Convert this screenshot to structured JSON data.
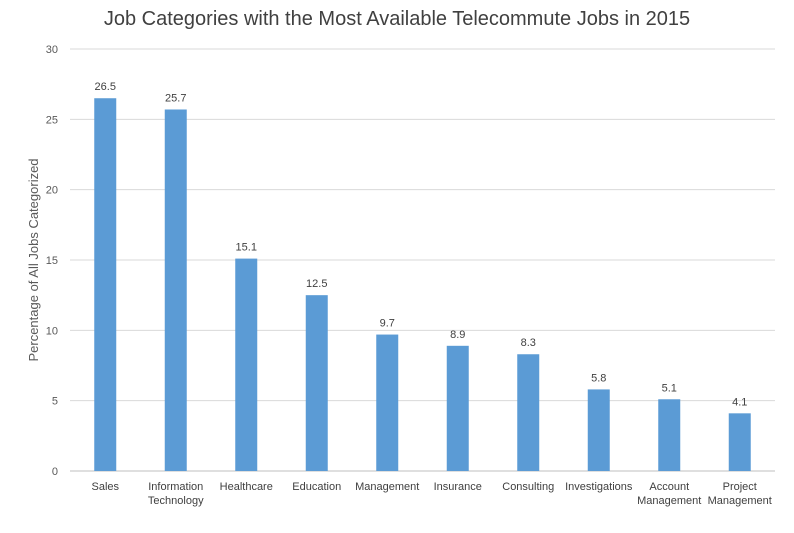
{
  "chart_data": {
    "type": "bar",
    "title": "Job Categories with the Most Available Telecommute Jobs in 2015",
    "xlabel": "",
    "ylabel": "Percentage of All Jobs Categorized",
    "ylim": [
      0,
      30
    ],
    "yticks": [
      0,
      5,
      10,
      15,
      20,
      25,
      30
    ],
    "grid": true,
    "legend": "none",
    "bar_color": "#5B9BD5",
    "categories": [
      [
        "Sales"
      ],
      [
        "Information",
        "Technology"
      ],
      [
        "Healthcare"
      ],
      [
        "Education"
      ],
      [
        "Management"
      ],
      [
        "Insurance"
      ],
      [
        "Consulting"
      ],
      [
        "Investigations"
      ],
      [
        "Account",
        "Management"
      ],
      [
        "Project",
        "Management"
      ]
    ],
    "values": [
      26.5,
      25.7,
      15.1,
      12.5,
      9.7,
      8.9,
      8.3,
      5.8,
      5.1,
      4.1
    ]
  }
}
